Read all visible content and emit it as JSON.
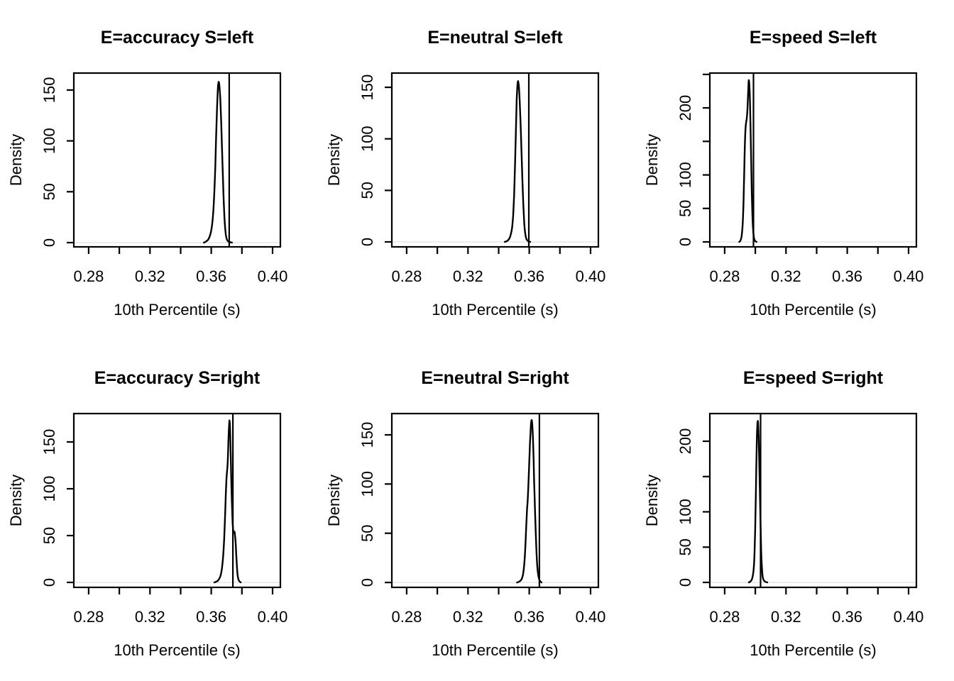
{
  "shared": {
    "xlab": "10th Percentile (s)",
    "ylab": "Density",
    "xlim": [
      0.2703,
      0.4051
    ],
    "x_ticks": [
      0.28,
      0.3,
      0.32,
      0.34,
      0.36,
      0.38,
      0.4
    ],
    "x_tick_labels": [
      "0.28",
      "",
      "0.32",
      "",
      "0.36",
      "",
      "0.40"
    ],
    "line_color": "#000000",
    "zero_line_color": "#ededed",
    "background": "#ffffff"
  },
  "chart_data": [
    {
      "type": "line",
      "title": "E=accuracy S=left",
      "xlabel": "10th Percentile (s)",
      "ylabel": "Density",
      "x": [
        0.3552,
        0.3565,
        0.358,
        0.3592,
        0.3602,
        0.3611,
        0.3619,
        0.3626,
        0.3632,
        0.3638,
        0.3643,
        0.3648,
        0.3653,
        0.3659,
        0.3665,
        0.3671,
        0.3677,
        0.3683,
        0.3689,
        0.3695,
        0.3702,
        0.3712,
        0.3722,
        0.3735
      ],
      "density": [
        0,
        1,
        3,
        7,
        14,
        26,
        46,
        74,
        105,
        133,
        151,
        158,
        154,
        141,
        117,
        88,
        59,
        34,
        17,
        8,
        3,
        1,
        0.5,
        0
      ],
      "peak": {
        "x": 0.3648,
        "density": 158
      },
      "vline": 0.3717,
      "ylim": [
        -4.2,
        166.7
      ],
      "y_ticks": [
        0,
        50,
        100,
        150
      ],
      "y_tick_labels": [
        "0",
        "50",
        "100",
        "150"
      ]
    },
    {
      "type": "line",
      "title": "E=neutral S=left",
      "xlabel": "10th Percentile (s)",
      "ylabel": "Density",
      "x": [
        0.344,
        0.3456,
        0.3469,
        0.3479,
        0.3488,
        0.3495,
        0.3501,
        0.3507,
        0.3513,
        0.3518,
        0.3523,
        0.3527,
        0.3532,
        0.3537,
        0.3543,
        0.3549,
        0.3555,
        0.3561,
        0.3567,
        0.3573,
        0.3581,
        0.3591,
        0.3606
      ],
      "density": [
        0,
        1,
        3,
        7,
        14,
        26,
        45,
        75,
        110,
        138,
        152,
        156,
        151,
        139,
        117,
        89,
        61,
        37,
        19,
        9,
        3,
        1,
        0
      ],
      "peak": {
        "x": 0.3527,
        "density": 156
      },
      "vline": 0.3597,
      "ylim": [
        -4.8,
        163.8
      ],
      "y_ticks": [
        0,
        50,
        100,
        150
      ],
      "y_tick_labels": [
        "0",
        "50",
        "100",
        "150"
      ]
    },
    {
      "type": "line",
      "title": "E=speed S=left",
      "xlabel": "10th Percentile (s)",
      "ylabel": "Density",
      "x": [
        0.2895,
        0.2903,
        0.291,
        0.2917,
        0.2923,
        0.2928,
        0.2933,
        0.2937,
        0.2941,
        0.2945,
        0.2949,
        0.2953,
        0.2957,
        0.2961,
        0.2965,
        0.2969,
        0.2973,
        0.2977,
        0.2981,
        0.2986,
        0.2991,
        0.2998,
        0.3008
      ],
      "density": [
        0,
        2,
        8,
        25,
        60,
        110,
        155,
        172,
        180,
        186,
        200,
        223,
        241,
        234,
        209,
        168,
        119,
        74,
        40,
        17,
        6,
        1.5,
        0
      ],
      "peak": {
        "x": 0.2957,
        "density": 241
      },
      "vline": 0.2988,
      "ylim": [
        -7.4,
        252
      ],
      "y_ticks": [
        0,
        50,
        100,
        150,
        200,
        250
      ],
      "y_tick_labels": [
        "0",
        "50",
        "100",
        "",
        "200",
        ""
      ]
    },
    {
      "type": "line",
      "title": "E=accuracy S=right",
      "xlabel": "10th Percentile (s)",
      "ylabel": "Density",
      "x": [
        0.362,
        0.3636,
        0.3649,
        0.366,
        0.3669,
        0.3677,
        0.3684,
        0.369,
        0.3695,
        0.3699,
        0.3703,
        0.3707,
        0.371,
        0.3713,
        0.3716,
        0.3719,
        0.3722,
        0.3725,
        0.3728,
        0.3732,
        0.3736,
        0.374,
        0.3744,
        0.3748,
        0.3752,
        0.3755,
        0.3759,
        0.3763,
        0.3767,
        0.3771,
        0.3776,
        0.3782,
        0.3792
      ],
      "density": [
        0,
        1,
        3,
        7,
        14,
        27,
        46,
        71,
        94,
        110,
        119,
        127,
        141,
        156,
        167,
        173,
        167,
        151,
        128,
        101,
        78,
        61,
        55,
        53,
        54,
        50,
        42,
        30,
        18,
        9,
        4,
        1.5,
        0
      ],
      "peak": {
        "x": 0.3719,
        "density": 173
      },
      "vline": 0.3741,
      "ylim": [
        -5.3,
        180.3
      ],
      "y_ticks": [
        0,
        50,
        100,
        150
      ],
      "y_tick_labels": [
        "0",
        "50",
        "100",
        "150"
      ]
    },
    {
      "type": "line",
      "title": "E=neutral S=right",
      "xlabel": "10th Percentile (s)",
      "ylabel": "Density",
      "x": [
        0.352,
        0.3536,
        0.3549,
        0.3559,
        0.3567,
        0.3574,
        0.358,
        0.3585,
        0.3589,
        0.3593,
        0.3598,
        0.3603,
        0.3608,
        0.3612,
        0.3616,
        0.362,
        0.3624,
        0.3628,
        0.3632,
        0.3637,
        0.3642,
        0.3647,
        0.3653,
        0.366,
        0.3668,
        0.368
      ],
      "density": [
        0,
        1,
        3,
        8,
        18,
        35,
        56,
        73,
        82,
        94,
        114,
        135,
        152,
        162,
        165,
        159,
        147,
        127,
        102,
        76,
        52,
        31,
        15,
        6,
        2,
        0
      ],
      "peak": {
        "x": 0.3616,
        "density": 165
      },
      "vline": 0.3666,
      "ylim": [
        -5.0,
        171.6
      ],
      "y_ticks": [
        0,
        50,
        100,
        150
      ],
      "y_tick_labels": [
        "0",
        "50",
        "100",
        "150"
      ]
    },
    {
      "type": "line",
      "title": "E=speed S=right",
      "xlabel": "10th Percentile (s)",
      "ylabel": "Density",
      "x": [
        0.2958,
        0.2971,
        0.298,
        0.2988,
        0.2994,
        0.2999,
        0.3003,
        0.3007,
        0.301,
        0.3013,
        0.3016,
        0.3019,
        0.3022,
        0.3026,
        0.303,
        0.3034,
        0.3038,
        0.3043,
        0.3048,
        0.3055,
        0.3065,
        0.3078
      ],
      "density": [
        0,
        2,
        6,
        16,
        36,
        75,
        122,
        170,
        205,
        222,
        229,
        222,
        203,
        168,
        124,
        81,
        46,
        21,
        8,
        3,
        1,
        0
      ],
      "peak": {
        "x": 0.3016,
        "density": 229
      },
      "vline": 0.3034,
      "ylim": [
        -7.0,
        239.2
      ],
      "y_ticks": [
        0,
        50,
        100,
        150,
        200
      ],
      "y_tick_labels": [
        "0",
        "50",
        "100",
        "",
        "200"
      ]
    }
  ]
}
